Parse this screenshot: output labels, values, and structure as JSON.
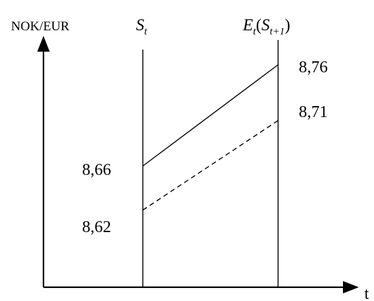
{
  "chart_data": {
    "type": "line",
    "y_axis_label": "NOK/EUR",
    "x_axis_label": "t",
    "vertical_markers": {
      "left": {
        "symbol": "S",
        "subscript": "t"
      },
      "right": {
        "symbol": "E",
        "subscript": "t",
        "paren_symbol": "S",
        "paren_subscript": "t+1"
      }
    },
    "series": [
      {
        "style": "solid",
        "start": 8.66,
        "end": 8.76
      },
      {
        "style": "dashed",
        "start": 8.62,
        "end": 8.71
      }
    ],
    "labels": {
      "left_upper": "8,66",
      "left_lower": "8,62",
      "right_upper": "8,76",
      "right_lower": "8,71"
    }
  }
}
